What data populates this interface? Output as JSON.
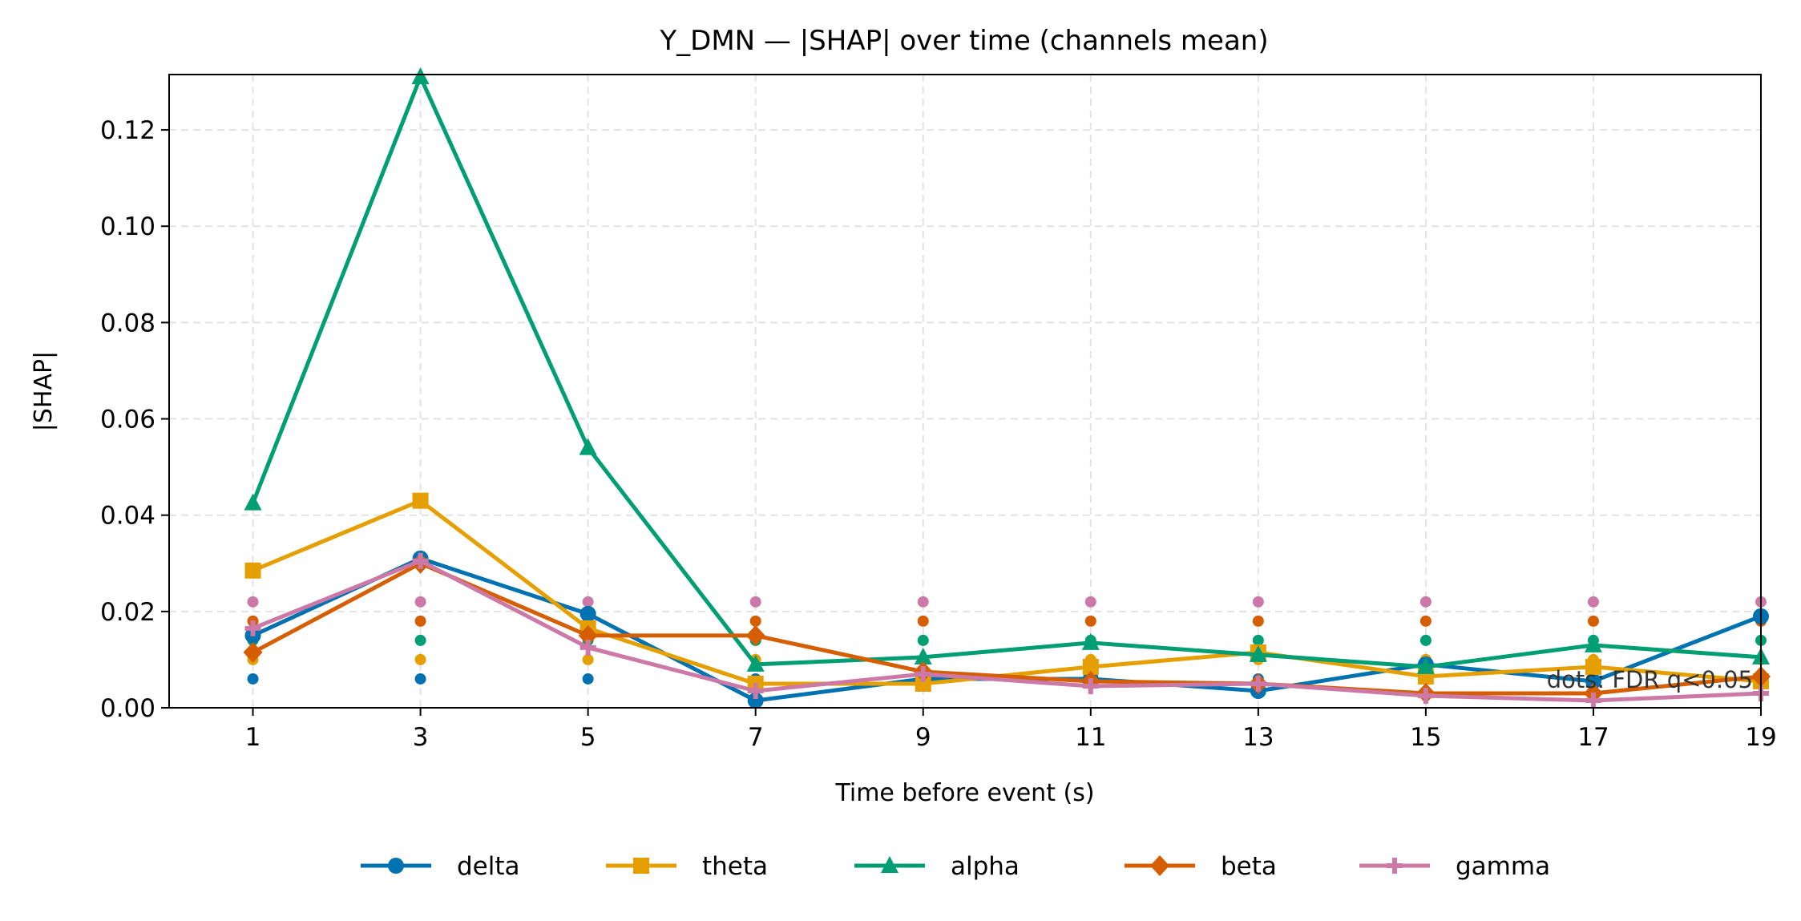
{
  "chart_data": {
    "type": "line",
    "title": "Y_DMN — |SHAP| over time (channels mean)",
    "xlabel": "Time before event (s)",
    "ylabel": "|SHAP|",
    "x": [
      1,
      3,
      5,
      7,
      9,
      11,
      13,
      15,
      17,
      19
    ],
    "x_ticks": [
      "1",
      "3",
      "5",
      "7",
      "9",
      "11",
      "13",
      "15",
      "17",
      "19"
    ],
    "xlim": [
      0,
      19
    ],
    "ylim": [
      0,
      0.1315
    ],
    "y_ticks": [
      "0.00",
      "0.02",
      "0.04",
      "0.06",
      "0.08",
      "0.10",
      "0.12"
    ],
    "grid": true,
    "legend_position": "bottom-center",
    "annotation": "dots: FDR q<0.05",
    "series": [
      {
        "name": "delta",
        "color": "#0072B2",
        "marker": "circle",
        "values": [
          0.015,
          0.031,
          0.0195,
          0.0015,
          0.006,
          0.006,
          0.0035,
          0.009,
          0.0055,
          0.019
        ],
        "sig_y": 0.006,
        "sig_x": [
          1,
          3,
          5,
          7,
          9,
          11,
          13,
          15,
          17,
          19
        ]
      },
      {
        "name": "theta",
        "color": "#E69F00",
        "marker": "square",
        "values": [
          0.0285,
          0.043,
          0.0165,
          0.005,
          0.005,
          0.0085,
          0.0115,
          0.0065,
          0.0085,
          0.0055
        ],
        "sig_y": 0.01,
        "sig_x": [
          1,
          3,
          5,
          7,
          9,
          11,
          13,
          15,
          17,
          19
        ]
      },
      {
        "name": "alpha",
        "color": "#009E73",
        "marker": "triangle",
        "values": [
          0.0425,
          0.131,
          0.054,
          0.009,
          0.0105,
          0.0135,
          0.011,
          0.0085,
          0.013,
          0.0105
        ],
        "sig_y": 0.014,
        "sig_x": [
          1,
          3,
          5,
          7,
          9,
          11,
          13,
          15,
          17,
          19
        ]
      },
      {
        "name": "beta",
        "color": "#D55E00",
        "marker": "diamond",
        "values": [
          0.0115,
          0.03,
          0.015,
          0.015,
          0.0075,
          0.0055,
          0.005,
          0.003,
          0.003,
          0.0065
        ],
        "sig_y": 0.018,
        "sig_x": [
          1,
          3,
          5,
          7,
          9,
          11,
          13,
          15,
          17,
          19
        ]
      },
      {
        "name": "gamma",
        "color": "#CC79A7",
        "marker": "plus",
        "values": [
          0.0165,
          0.0305,
          0.0125,
          0.0035,
          0.007,
          0.0045,
          0.005,
          0.0025,
          0.0015,
          0.003
        ],
        "sig_y": 0.022,
        "sig_x": [
          1,
          3,
          5,
          7,
          9,
          11,
          13,
          15,
          17,
          19
        ]
      }
    ]
  }
}
